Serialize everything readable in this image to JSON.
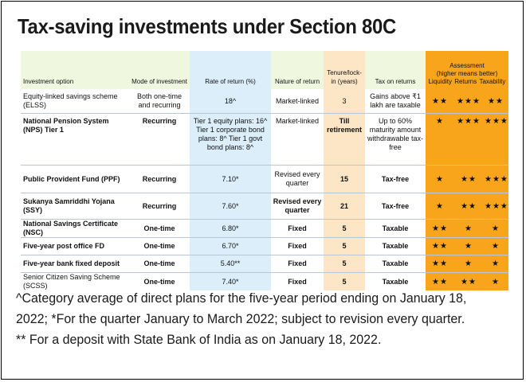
{
  "title": "Tax-saving investments under Section 80C",
  "headers": {
    "option": "Investment option",
    "mode": "Mode of investment",
    "rate": "Rate of return (%)",
    "nature": "Nature of return",
    "tenure": "Tenure/lock-in (years)",
    "tax": "Tax on returns",
    "assessment": "Assessment",
    "assessment_note": "(higher means better)",
    "liquidity": "Liquidity",
    "returns": "Returns",
    "taxability": "Taxability"
  },
  "rows": [
    {
      "option": "Equity-linked savings scheme (ELSS)",
      "mode": "Both one-time and recurring",
      "rate": "18^",
      "nature": "Market-linked",
      "tenure": "3",
      "tax": "Gains above ₹1 lakh are taxable",
      "liquidity": "★★",
      "returns": "★★★",
      "taxability": "★★"
    },
    {
      "option": "National Pension System (NPS) Tier 1",
      "mode": "Recurring",
      "rate": "Tier 1 equity plans: 16^ Tier 1 corporate bond plans: 8^ Tier 1 govt bond plans: 8^",
      "nature": "Market-linked",
      "tenure": "Till retirement",
      "tax": "Up to 60% maturity amount withdrawable tax-free",
      "liquidity": "★",
      "returns": "★★★",
      "taxability": "★★★"
    },
    {
      "option": "Public Provident Fund (PPF)",
      "mode": "Recurring",
      "rate": "7.10*",
      "nature": "Revised every quarter",
      "tenure": "15",
      "tax": "Tax-free",
      "liquidity": "★",
      "returns": "★★",
      "taxability": "★★★"
    },
    {
      "option": "Sukanya Samriddhi Yojana (SSY)",
      "mode": "Recurring",
      "rate": "7.60*",
      "nature": "Revised every quarter",
      "tenure": "21",
      "tax": "Tax-free",
      "liquidity": "★",
      "returns": "★★",
      "taxability": "★★★"
    },
    {
      "option": "National Savings Certificate (NSC)",
      "mode": "One-time",
      "rate": "6.80*",
      "nature": "Fixed",
      "tenure": "5",
      "tax": "Taxable",
      "liquidity": "★★",
      "returns": "★",
      "taxability": "★"
    },
    {
      "option": "Five-year post office FD",
      "mode": "One-time",
      "rate": "6.70*",
      "nature": "Fixed",
      "tenure": "5",
      "tax": "Taxable",
      "liquidity": "★★",
      "returns": "★",
      "taxability": "★"
    },
    {
      "option": "Five-year bank fixed deposit",
      "mode": "One-time",
      "rate": "5.40**",
      "nature": "Fixed",
      "tenure": "5",
      "tax": "Taxable",
      "liquidity": "★★",
      "returns": "★",
      "taxability": "★"
    },
    {
      "option": "Senior Citizen Saving Scheme (SCSS)",
      "mode": "One-time",
      "rate": "7.40*",
      "nature": "Fixed",
      "tenure": "5",
      "tax": "Taxable",
      "liquidity": "★★",
      "returns": "★★",
      "taxability": "★"
    }
  ],
  "notes": {
    "note1": "^Category average of direct plans for the five-year period ending on January 18, 2022; *For the quarter January to March 2022; subject to revision every quarter.",
    "note2": "** For a deposit with State Bank of India as on January 18, 2022."
  },
  "colors": {
    "header_bg": "#eff7df",
    "rate_col": "#dbeefa",
    "tenure_col": "#fde6c6",
    "assessment_col": "#f9a51b"
  }
}
